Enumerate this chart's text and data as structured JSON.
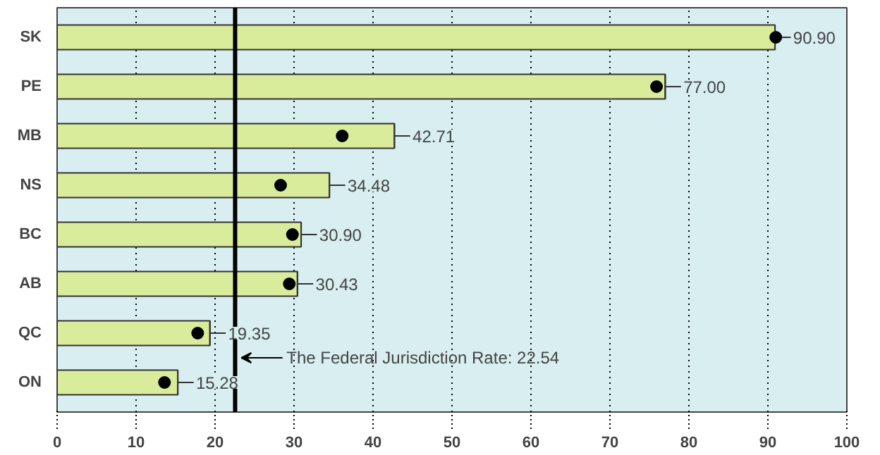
{
  "chart_data": {
    "type": "bar",
    "orientation": "horizontal",
    "categories": [
      "SK",
      "PE",
      "MB",
      "NS",
      "BC",
      "AB",
      "QC",
      "ON"
    ],
    "series": [
      {
        "color": "#d9ec9c",
        "values": [
          90.9,
          77.0,
          42.71,
          34.48,
          30.9,
          30.43,
          19.35,
          15.28
        ],
        "value_labels": [
          "90.90",
          "77.00",
          "42.71",
          "34.48",
          "30.90",
          "30.43",
          "19.35",
          "15.28"
        ]
      },
      {
        "type": "scatter",
        "color": "#000000",
        "marker": "circle",
        "values": [
          91.0,
          75.9,
          36.1,
          28.3,
          29.8,
          29.4,
          17.8,
          13.6
        ]
      }
    ],
    "xlim": [
      0,
      100
    ],
    "xticks": [
      0,
      10,
      20,
      30,
      40,
      50,
      60,
      70,
      80,
      90,
      100
    ],
    "grid": "x",
    "ref_lines": [
      {
        "axis": "x",
        "value": 22.54,
        "label": "The Federal Jurisdiction Rate: 22.54",
        "color": "#000000"
      }
    ]
  }
}
